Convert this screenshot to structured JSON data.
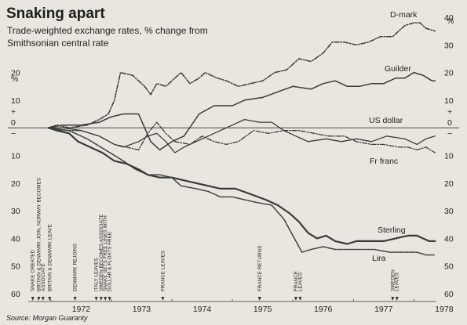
{
  "chart_data": {
    "type": "line",
    "title": "Snaking apart",
    "subtitle_line1": "Trade-weighted exchange rates, % change from",
    "subtitle_line2": "Smithsonian central rate",
    "left_unit": "%",
    "right_unit": "%",
    "source": "Source: Morgan Guaranty",
    "zero_marker_left": "0",
    "zero_marker_right": "0",
    "plus_marker_left": "+",
    "minus_marker_left": "−",
    "plus_marker_right": "+",
    "minus_marker_right": "−",
    "x_ticks": [
      "1972",
      "1973",
      "1974",
      "1975",
      "1976",
      "1977",
      "1978"
    ],
    "x_range": [
      1971.6,
      1978.45
    ],
    "y_range": [
      -60,
      40
    ],
    "left_ticks": [
      {
        "label": "20",
        "v": 20
      },
      {
        "label": "10",
        "v": 10
      },
      {
        "label": "10",
        "v": -10
      },
      {
        "label": "20",
        "v": -20
      },
      {
        "label": "30",
        "v": -30
      },
      {
        "label": "40",
        "v": -40
      },
      {
        "label": "50",
        "v": -50
      },
      {
        "label": "60",
        "v": -60
      }
    ],
    "right_ticks": [
      {
        "label": "40",
        "v": 40
      },
      {
        "label": "30",
        "v": 30
      },
      {
        "label": "20",
        "v": 20
      },
      {
        "label": "10",
        "v": 10
      },
      {
        "label": "10",
        "v": -10
      },
      {
        "label": "20",
        "v": -20
      },
      {
        "label": "30",
        "v": -30
      },
      {
        "label": "40",
        "v": -40
      },
      {
        "label": "50",
        "v": -50
      },
      {
        "label": "60",
        "v": -60
      }
    ],
    "series": [
      {
        "name": "D-mark",
        "style": "dashdot",
        "width": 1.5,
        "points": [
          [
            1971.96,
            0
          ],
          [
            1972.1,
            1
          ],
          [
            1972.3,
            0
          ],
          [
            1972.6,
            1
          ],
          [
            1972.8,
            3
          ],
          [
            1972.95,
            5
          ],
          [
            1973.05,
            10
          ],
          [
            1973.15,
            20
          ],
          [
            1973.35,
            19
          ],
          [
            1973.55,
            15
          ],
          [
            1973.65,
            12
          ],
          [
            1973.75,
            16
          ],
          [
            1973.9,
            15
          ],
          [
            1974.15,
            20
          ],
          [
            1974.3,
            16
          ],
          [
            1974.45,
            18
          ],
          [
            1974.55,
            20
          ],
          [
            1974.75,
            18
          ],
          [
            1974.9,
            17
          ],
          [
            1975.1,
            15
          ],
          [
            1975.3,
            16
          ],
          [
            1975.5,
            17
          ],
          [
            1975.7,
            20
          ],
          [
            1975.9,
            21
          ],
          [
            1976.1,
            25
          ],
          [
            1976.3,
            24
          ],
          [
            1976.5,
            27
          ],
          [
            1976.65,
            31
          ],
          [
            1976.85,
            31
          ],
          [
            1977.05,
            30
          ],
          [
            1977.25,
            31
          ],
          [
            1977.45,
            33
          ],
          [
            1977.65,
            33
          ],
          [
            1977.85,
            37
          ],
          [
            1978.0,
            38
          ],
          [
            1978.1,
            38
          ],
          [
            1978.2,
            36
          ],
          [
            1978.35,
            35
          ]
        ]
      },
      {
        "name": "Guilder",
        "style": "solid",
        "width": 1.5,
        "points": [
          [
            1971.96,
            0
          ],
          [
            1972.2,
            1
          ],
          [
            1972.5,
            1
          ],
          [
            1972.8,
            2
          ],
          [
            1973.0,
            4
          ],
          [
            1973.2,
            5
          ],
          [
            1973.45,
            5
          ],
          [
            1973.55,
            0
          ],
          [
            1973.65,
            -5
          ],
          [
            1973.8,
            -8
          ],
          [
            1974.0,
            -5
          ],
          [
            1974.2,
            -3
          ],
          [
            1974.45,
            5
          ],
          [
            1974.7,
            8
          ],
          [
            1975.0,
            8
          ],
          [
            1975.2,
            10
          ],
          [
            1975.5,
            11
          ],
          [
            1975.75,
            13
          ],
          [
            1976.0,
            15
          ],
          [
            1976.3,
            14
          ],
          [
            1976.5,
            16
          ],
          [
            1976.7,
            17
          ],
          [
            1976.9,
            15
          ],
          [
            1977.1,
            15
          ],
          [
            1977.3,
            16
          ],
          [
            1977.5,
            16
          ],
          [
            1977.7,
            18
          ],
          [
            1977.85,
            18
          ],
          [
            1978.0,
            20
          ],
          [
            1978.15,
            19
          ],
          [
            1978.3,
            17
          ],
          [
            1978.35,
            17
          ]
        ]
      },
      {
        "name": "US dollar",
        "style": "dashdot",
        "width": 1.3,
        "points": [
          [
            1971.96,
            0
          ],
          [
            1972.2,
            -1
          ],
          [
            1972.5,
            -1
          ],
          [
            1972.8,
            -3
          ],
          [
            1973.05,
            -6
          ],
          [
            1973.25,
            -7
          ],
          [
            1973.45,
            -8
          ],
          [
            1973.6,
            -2
          ],
          [
            1973.75,
            2
          ],
          [
            1973.9,
            -2
          ],
          [
            1974.05,
            -5
          ],
          [
            1974.3,
            -6
          ],
          [
            1974.5,
            -3
          ],
          [
            1974.7,
            -5
          ],
          [
            1974.9,
            -6
          ],
          [
            1975.1,
            -5
          ],
          [
            1975.35,
            -1
          ],
          [
            1975.6,
            -2
          ],
          [
            1975.85,
            -1
          ],
          [
            1976.1,
            -1
          ],
          [
            1976.35,
            -2
          ],
          [
            1976.6,
            -3
          ],
          [
            1976.85,
            -3
          ],
          [
            1977.05,
            -5
          ],
          [
            1977.3,
            -6
          ],
          [
            1977.5,
            -6
          ],
          [
            1977.75,
            -7
          ],
          [
            1977.9,
            -7
          ],
          [
            1978.05,
            -8
          ],
          [
            1978.2,
            -7
          ],
          [
            1978.35,
            -9
          ]
        ]
      },
      {
        "name": "Fr franc",
        "style": "solid",
        "width": 1.3,
        "points": [
          [
            1971.96,
            0
          ],
          [
            1972.2,
            0
          ],
          [
            1972.5,
            -1
          ],
          [
            1972.8,
            -3
          ],
          [
            1973.05,
            -6
          ],
          [
            1973.2,
            -7
          ],
          [
            1973.45,
            -5
          ],
          [
            1973.6,
            -3
          ],
          [
            1973.75,
            -2
          ],
          [
            1973.9,
            -5
          ],
          [
            1974.05,
            -9
          ],
          [
            1974.2,
            -7
          ],
          [
            1974.4,
            -5
          ],
          [
            1974.6,
            -3
          ],
          [
            1974.8,
            -1
          ],
          [
            1975.0,
            1
          ],
          [
            1975.2,
            3
          ],
          [
            1975.45,
            2
          ],
          [
            1975.65,
            2
          ],
          [
            1975.85,
            -1
          ],
          [
            1976.05,
            -3
          ],
          [
            1976.25,
            -5
          ],
          [
            1976.55,
            -4
          ],
          [
            1976.8,
            -5
          ],
          [
            1977.05,
            -4
          ],
          [
            1977.3,
            -5
          ],
          [
            1977.55,
            -3
          ],
          [
            1977.85,
            -4
          ],
          [
            1978.05,
            -6
          ],
          [
            1978.2,
            -4
          ],
          [
            1978.35,
            -3
          ]
        ]
      },
      {
        "name": "Sterling",
        "style": "solid",
        "width": 2.2,
        "points": [
          [
            1971.96,
            0
          ],
          [
            1972.1,
            -1
          ],
          [
            1972.3,
            -2
          ],
          [
            1972.45,
            -5
          ],
          [
            1972.65,
            -7
          ],
          [
            1972.85,
            -9
          ],
          [
            1973.05,
            -12
          ],
          [
            1973.25,
            -13
          ],
          [
            1973.45,
            -15
          ],
          [
            1973.6,
            -17
          ],
          [
            1973.8,
            -18
          ],
          [
            1974.0,
            -18
          ],
          [
            1974.2,
            -19
          ],
          [
            1974.4,
            -20
          ],
          [
            1974.6,
            -21
          ],
          [
            1974.8,
            -22
          ],
          [
            1975.05,
            -22
          ],
          [
            1975.3,
            -24
          ],
          [
            1975.55,
            -26
          ],
          [
            1975.75,
            -28
          ],
          [
            1975.95,
            -31
          ],
          [
            1976.1,
            -34
          ],
          [
            1976.25,
            -38
          ],
          [
            1976.4,
            -40
          ],
          [
            1976.55,
            -39
          ],
          [
            1976.7,
            -41
          ],
          [
            1976.9,
            -42
          ],
          [
            1977.05,
            -41
          ],
          [
            1977.3,
            -41
          ],
          [
            1977.5,
            -41
          ],
          [
            1977.7,
            -40
          ],
          [
            1977.9,
            -39
          ],
          [
            1978.05,
            -39
          ],
          [
            1978.15,
            -40
          ],
          [
            1978.25,
            -41
          ],
          [
            1978.35,
            -41
          ]
        ]
      },
      {
        "name": "Lira",
        "style": "dotted",
        "width": 1.6,
        "points": [
          [
            1971.96,
            0
          ],
          [
            1972.3,
            -1
          ],
          [
            1972.6,
            -4
          ],
          [
            1972.9,
            -8
          ],
          [
            1973.05,
            -10
          ],
          [
            1973.2,
            -12
          ],
          [
            1973.4,
            -15
          ],
          [
            1973.6,
            -17
          ],
          [
            1973.8,
            -17
          ],
          [
            1974.0,
            -18
          ],
          [
            1974.15,
            -21
          ],
          [
            1974.4,
            -22
          ],
          [
            1974.6,
            -23
          ],
          [
            1974.8,
            -25
          ],
          [
            1975.0,
            -25
          ],
          [
            1975.2,
            -26
          ],
          [
            1975.4,
            -27
          ],
          [
            1975.65,
            -28
          ],
          [
            1975.85,
            -33
          ],
          [
            1976.0,
            -39
          ],
          [
            1976.15,
            -45
          ],
          [
            1976.3,
            -44
          ],
          [
            1976.5,
            -43
          ],
          [
            1976.7,
            -44
          ],
          [
            1976.9,
            -44
          ],
          [
            1977.1,
            -44
          ],
          [
            1977.35,
            -44
          ],
          [
            1977.6,
            -45
          ],
          [
            1977.85,
            -45
          ],
          [
            1978.05,
            -45
          ],
          [
            1978.2,
            -46
          ],
          [
            1978.35,
            -46
          ]
        ]
      }
    ],
    "series_labels": [
      {
        "series": "D-mark",
        "text": "D-mark"
      },
      {
        "series": "Guilder",
        "text": "Guilder"
      },
      {
        "series": "US dollar",
        "text": "US dollar"
      },
      {
        "series": "Fr franc",
        "text": "Fr franc"
      },
      {
        "series": "Sterling",
        "text": "Sterling"
      },
      {
        "series": "Lira",
        "text": "Lira"
      }
    ],
    "events": [
      {
        "t": 1971.7,
        "label": "SNAKE CREATED"
      },
      {
        "t": 1971.8,
        "label": "BRITAIN & DENMARK JOIN, NORWAY BECOMES"
      },
      {
        "t": 1971.87,
        "label": "ASSOCIATE"
      },
      {
        "t": 1971.98,
        "label": "BRITAIN & DENMARK LEAVE"
      },
      {
        "t": 1972.4,
        "label": "DENMARK REJOINS"
      },
      {
        "t": 1972.75,
        "label": "ITALY LEAVES"
      },
      {
        "t": 1972.83,
        "label": "SWEDEN BECOMES ASSOCIATE"
      },
      {
        "t": 1972.9,
        "label": "SNAKE SETS FREE LINKS WITH"
      },
      {
        "t": 1972.97,
        "label": "DOLLAR & FLOATS FREE"
      },
      {
        "t": 1973.85,
        "label": "FRANCE LEAVES"
      },
      {
        "t": 1975.45,
        "label": "FRANCE RETURNS"
      },
      {
        "t": 1976.05,
        "label": "FRANCE"
      },
      {
        "t": 1976.12,
        "label": "LEAVES"
      },
      {
        "t": 1977.65,
        "label": "SWEDEN"
      },
      {
        "t": 1977.72,
        "label": "LEAVES"
      }
    ]
  }
}
